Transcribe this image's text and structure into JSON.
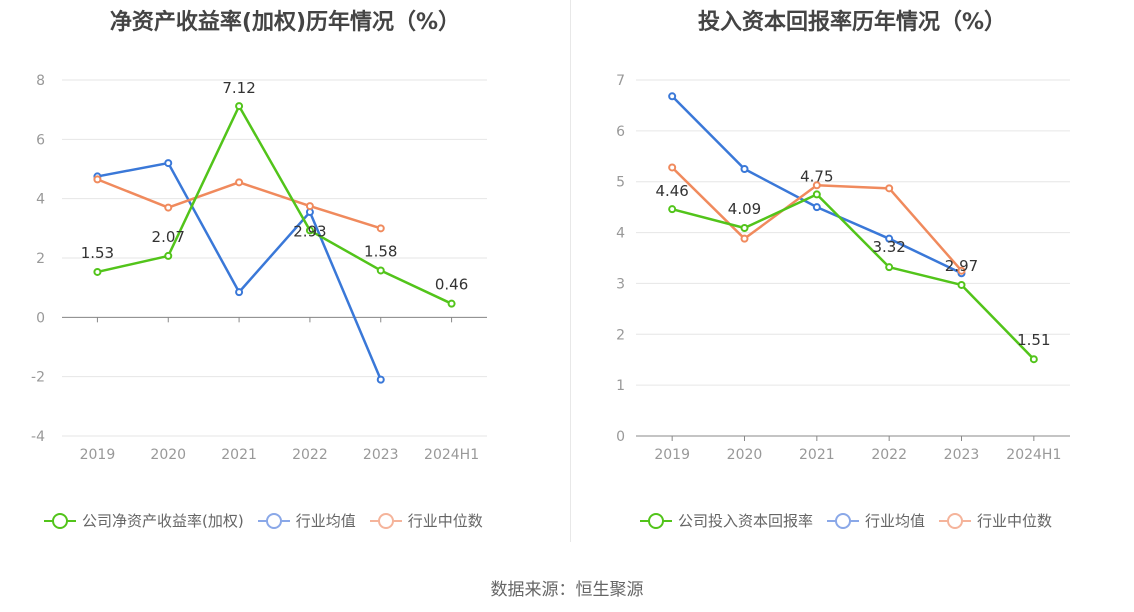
{
  "source": "数据来源：恒生聚源",
  "colors": {
    "company": "#52c41a",
    "avg": "#3a78d8",
    "median": "#f08a5d",
    "legend_avg": "#8aa8e8",
    "legend_median": "#f5b49b"
  },
  "chart_data": [
    {
      "type": "line",
      "title": "净资产收益率(加权)历年情况（%）",
      "categories": [
        "2019",
        "2020",
        "2021",
        "2022",
        "2023",
        "2024H1"
      ],
      "ylim": [
        -4,
        8
      ],
      "yticks": [
        "8",
        "6",
        "4",
        "2",
        "0",
        "-2",
        "-4"
      ],
      "legend_position": "bottom",
      "series": [
        {
          "name": "公司净资产收益率(加权)",
          "values": [
            1.53,
            2.07,
            7.12,
            2.93,
            1.58,
            0.46
          ],
          "labels": [
            "1.53",
            "2.07",
            "7.12",
            "2.93",
            "1.58",
            "0.46"
          ]
        },
        {
          "name": "行业均值",
          "values": [
            4.75,
            5.2,
            0.85,
            3.55,
            -2.1,
            null
          ]
        },
        {
          "name": "行业中位数",
          "values": [
            4.65,
            3.7,
            4.55,
            3.75,
            3.0,
            null
          ]
        }
      ]
    },
    {
      "type": "line",
      "title": "投入资本回报率历年情况（%）",
      "categories": [
        "2019",
        "2020",
        "2021",
        "2022",
        "2023",
        "2024H1"
      ],
      "ylim": [
        0,
        7
      ],
      "yticks": [
        "7",
        "6",
        "5",
        "4",
        "3",
        "2",
        "1",
        "0"
      ],
      "legend_position": "bottom",
      "series": [
        {
          "name": "公司投入资本回报率",
          "values": [
            4.46,
            4.09,
            4.75,
            3.32,
            2.97,
            1.51
          ],
          "labels": [
            "4.46",
            "4.09",
            "4.75",
            "3.32",
            "2.97",
            "1.51"
          ]
        },
        {
          "name": "行业均值",
          "values": [
            6.68,
            5.25,
            4.5,
            3.88,
            3.2,
            null
          ]
        },
        {
          "name": "行业中位数",
          "values": [
            5.28,
            3.88,
            4.93,
            4.87,
            3.25,
            null
          ]
        }
      ]
    }
  ]
}
